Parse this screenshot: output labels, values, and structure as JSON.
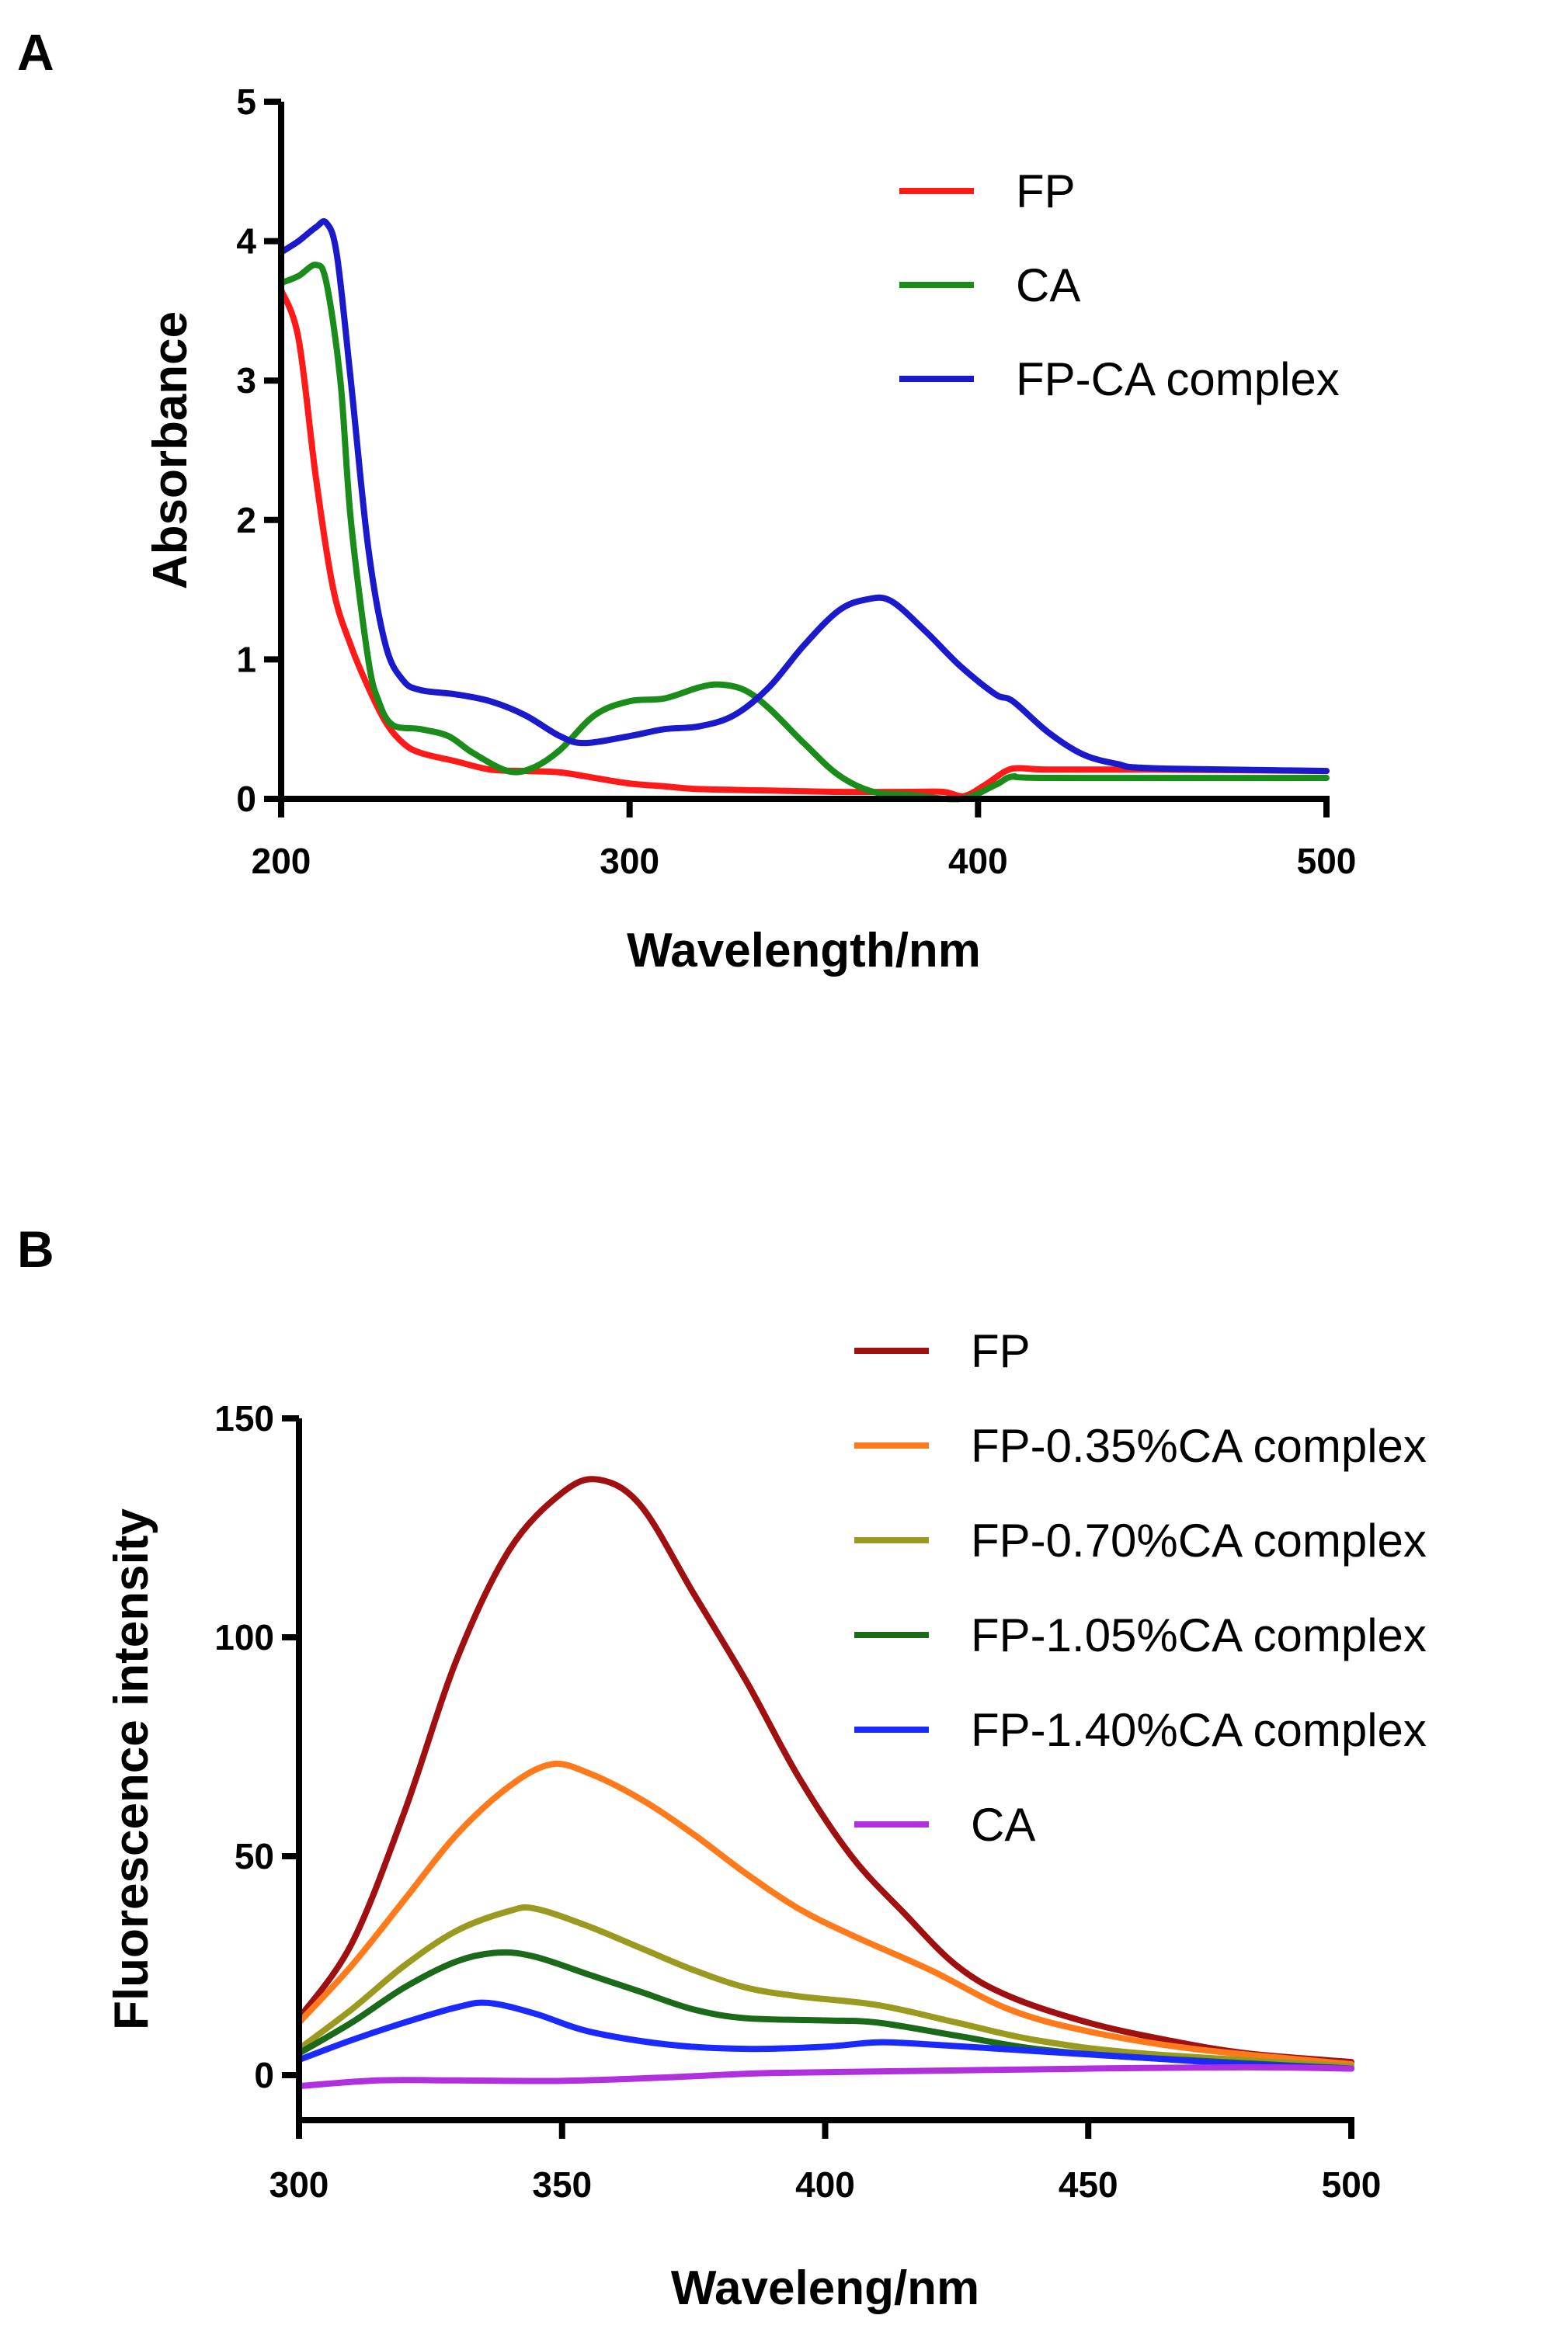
{
  "chart_data": [
    {
      "panel": "A",
      "type": "line",
      "xlabel": "Wavelength/nm",
      "ylabel": "Absorbance",
      "xlim": [
        200,
        500
      ],
      "ylim": [
        0,
        5
      ],
      "xticks": [
        200,
        300,
        400,
        500
      ],
      "yticks": [
        0,
        1,
        2,
        3,
        4,
        5
      ],
      "grid": false,
      "legend_position": "top-right",
      "series": [
        {
          "name": "FP",
          "color": "#ff1a1a",
          "x": [
            200,
            205,
            210,
            215,
            220,
            225,
            230,
            235,
            240,
            250,
            260,
            270,
            280,
            290,
            300,
            310,
            320,
            340,
            360,
            380,
            390,
            396,
            402,
            408,
            412,
            420,
            450,
            500
          ],
          "y": [
            3.65,
            3.3,
            2.3,
            1.5,
            1.1,
            0.8,
            0.55,
            0.4,
            0.33,
            0.27,
            0.21,
            0.2,
            0.19,
            0.15,
            0.11,
            0.09,
            0.07,
            0.06,
            0.05,
            0.05,
            0.05,
            0.02,
            0.1,
            0.2,
            0.22,
            0.21,
            0.21,
            0.2
          ]
        },
        {
          "name": "CA",
          "color": "#1a8c1a",
          "x": [
            200,
            205,
            210,
            213,
            217,
            220,
            225,
            228,
            232,
            240,
            248,
            255,
            265,
            272,
            280,
            290,
            300,
            310,
            320,
            326,
            333,
            340,
            350,
            360,
            370,
            380,
            395,
            405,
            410,
            420,
            500
          ],
          "y": [
            3.7,
            3.75,
            3.83,
            3.7,
            3.0,
            2.0,
            1.0,
            0.7,
            0.53,
            0.5,
            0.45,
            0.33,
            0.2,
            0.22,
            0.35,
            0.6,
            0.7,
            0.72,
            0.8,
            0.82,
            0.78,
            0.65,
            0.4,
            0.17,
            0.05,
            0.03,
            0.0,
            0.1,
            0.16,
            0.15,
            0.15
          ]
        },
        {
          "name": "FP-CA complex",
          "color": "#1a1acc",
          "x": [
            200,
            205,
            210,
            213,
            216,
            220,
            225,
            230,
            235,
            240,
            250,
            260,
            270,
            280,
            287,
            300,
            310,
            320,
            330,
            340,
            350,
            360,
            368,
            375,
            385,
            395,
            405,
            410,
            420,
            430,
            440,
            450,
            500
          ],
          "y": [
            3.92,
            4.0,
            4.1,
            4.13,
            3.9,
            3.0,
            1.8,
            1.1,
            0.85,
            0.78,
            0.75,
            0.7,
            0.6,
            0.45,
            0.4,
            0.45,
            0.5,
            0.52,
            0.6,
            0.8,
            1.1,
            1.35,
            1.43,
            1.42,
            1.2,
            0.95,
            0.75,
            0.7,
            0.48,
            0.32,
            0.25,
            0.22,
            0.2
          ]
        }
      ]
    },
    {
      "panel": "B",
      "type": "line",
      "xlabel": "Waveleng/nm",
      "ylabel": "Fluorescence intensity",
      "xlim": [
        300,
        500
      ],
      "ylim": [
        -10,
        150
      ],
      "xticks": [
        300,
        350,
        400,
        450,
        500
      ],
      "yticks": [
        0,
        50,
        100,
        150
      ],
      "grid": false,
      "legend_position": "top-right",
      "series": [
        {
          "name": "FP",
          "color": "#a01010",
          "x": [
            300,
            310,
            320,
            330,
            340,
            350,
            357,
            365,
            375,
            385,
            395,
            405,
            415,
            425,
            435,
            450,
            465,
            480,
            500
          ],
          "y": [
            13,
            30,
            60,
            95,
            120,
            133,
            136,
            130,
            110,
            90,
            68,
            50,
            37,
            25,
            18,
            12,
            8,
            5,
            3
          ]
        },
        {
          "name": "FP-0.35%CA complex",
          "color": "#ff7a1a",
          "x": [
            300,
            310,
            320,
            330,
            340,
            348,
            355,
            365,
            375,
            385,
            395,
            405,
            420,
            435,
            450,
            470,
            500
          ],
          "y": [
            12,
            25,
            40,
            55,
            66,
            71,
            69,
            63,
            55,
            46,
            38,
            32,
            24,
            15,
            10,
            6,
            2.5
          ]
        },
        {
          "name": "FP-0.70%CA complex",
          "color": "#9a9a20",
          "x": [
            300,
            310,
            320,
            330,
            340,
            345,
            355,
            365,
            375,
            385,
            395,
            410,
            425,
            440,
            460,
            500
          ],
          "y": [
            6,
            15,
            25,
            33,
            37.5,
            38,
            34,
            29,
            24,
            20,
            18,
            16,
            12,
            8,
            5,
            2
          ]
        },
        {
          "name": "FP-1.05%CA complex",
          "color": "#1a6a1a",
          "x": [
            300,
            310,
            320,
            330,
            338,
            345,
            355,
            365,
            375,
            385,
            400,
            410,
            425,
            440,
            460,
            500
          ],
          "y": [
            5,
            12,
            20,
            26,
            28,
            27,
            23,
            19,
            15,
            13,
            12.5,
            12,
            9,
            6,
            4,
            1.5
          ]
        },
        {
          "name": "FP-1.40%CA complex",
          "color": "#1a2aff",
          "x": [
            300,
            310,
            320,
            330,
            336,
            345,
            355,
            370,
            385,
            400,
            410,
            420,
            440,
            460,
            480,
            500
          ],
          "y": [
            3.5,
            8,
            12,
            15.5,
            16.5,
            14,
            10,
            7,
            6,
            6.5,
            7.5,
            7,
            5.5,
            4,
            2.5,
            1.5
          ]
        },
        {
          "name": "CA",
          "color": "#b030e0",
          "x": [
            300,
            315,
            330,
            350,
            370,
            390,
            420,
            450,
            480,
            500
          ],
          "y": [
            -2.5,
            -1.2,
            -1.2,
            -1.3,
            -0.5,
            0.5,
            1,
            1.5,
            1.8,
            1.5
          ]
        }
      ]
    }
  ]
}
